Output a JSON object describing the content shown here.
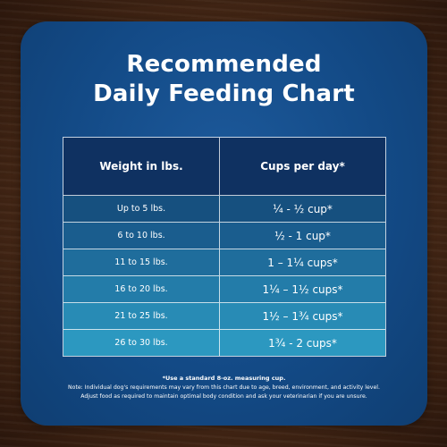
{
  "title": {
    "line1": "Recommended",
    "line2": "Daily Feeding Chart"
  },
  "table": {
    "headers": {
      "weight": "Weight in lbs.",
      "cups": "Cups per day*"
    },
    "rows": [
      {
        "weight": "Up to 5 lbs.",
        "cups": "¼ - ½ cup*"
      },
      {
        "weight": "6 to 10 lbs.",
        "cups": "½ - 1 cup*"
      },
      {
        "weight": "11 to 15 lbs.",
        "cups": "1 – 1¼ cups*"
      },
      {
        "weight": "16 to 20 lbs.",
        "cups": "1¼ – 1½ cups*"
      },
      {
        "weight": "21 to 25 lbs.",
        "cups": "1½ – 1¾ cups*"
      },
      {
        "weight": "26 to 30 lbs.",
        "cups": "1¾ - 2 cups*"
      }
    ]
  },
  "footnotes": {
    "line1": "*Use a standard 8-oz. measuring cup.",
    "line2": "Note: Individual dog's requirements may vary from this chart due to age, breed, environment, and activity level.",
    "line3": "Adjust food as required to maintain optimal body condition and ask your veterinarian if you are unsure."
  },
  "colors": {
    "card": "#134a86",
    "header_row": "#0f3161",
    "background": "#4a2a17"
  }
}
